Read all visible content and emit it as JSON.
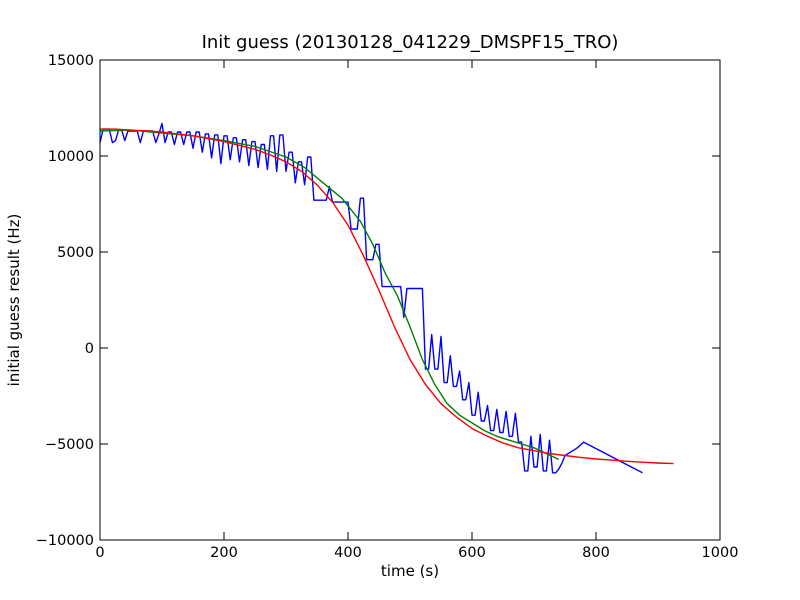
{
  "chart_data": {
    "type": "line",
    "title": "Init guess (20130128_041229_DMSPF15_TRO)",
    "xlabel": "time (s)",
    "ylabel": "initial guess result (Hz)",
    "xlim": [
      0,
      1000
    ],
    "ylim": [
      -10000,
      15000
    ],
    "xticks": [
      "0",
      "200",
      "400",
      "600",
      "800",
      "1000"
    ],
    "yticks": [
      "−10000",
      "−5000",
      "0",
      "5000",
      "10000",
      "15000"
    ],
    "grid": false,
    "legend": "none",
    "series": [
      {
        "color": "#0000ff",
        "x": [
          0,
          5,
          10,
          15,
          20,
          25,
          30,
          35,
          40,
          45,
          50,
          55,
          60,
          65,
          70,
          75,
          80,
          85,
          90,
          95,
          100,
          105,
          110,
          115,
          120,
          125,
          130,
          135,
          140,
          145,
          150,
          155,
          160,
          165,
          170,
          175,
          180,
          185,
          190,
          195,
          200,
          205,
          210,
          215,
          220,
          225,
          230,
          235,
          240,
          245,
          250,
          255,
          260,
          265,
          270,
          275,
          280,
          285,
          290,
          295,
          300,
          305,
          310,
          315,
          320,
          325,
          330,
          335,
          340,
          345,
          350,
          355,
          360,
          365,
          370,
          375,
          380,
          385,
          390,
          395,
          400,
          405,
          410,
          415,
          420,
          425,
          430,
          435,
          440,
          445,
          450,
          455,
          460,
          465,
          470,
          475,
          480,
          485,
          490,
          495,
          500,
          505,
          510,
          515,
          520,
          525,
          530,
          535,
          540,
          545,
          550,
          555,
          560,
          565,
          570,
          575,
          580,
          585,
          590,
          595,
          600,
          605,
          610,
          615,
          620,
          625,
          630,
          635,
          640,
          645,
          650,
          655,
          660,
          665,
          670,
          675,
          680,
          685,
          690,
          695,
          700,
          705,
          710,
          715,
          720,
          725,
          730,
          735,
          740,
          745,
          750,
          760,
          770,
          780,
          875
        ],
        "y": [
          10700,
          11400,
          11400,
          11400,
          10700,
          10800,
          11350,
          11350,
          10800,
          11300,
          11300,
          11300,
          11300,
          10700,
          11300,
          11300,
          11300,
          11300,
          10700,
          11150,
          11700,
          10700,
          11250,
          11250,
          10600,
          11250,
          11250,
          10600,
          11250,
          11250,
          10400,
          11250,
          11250,
          10200,
          11150,
          11150,
          9900,
          11100,
          11100,
          9600,
          11050,
          11050,
          9800,
          10950,
          10950,
          9700,
          10850,
          10850,
          9500,
          10750,
          10750,
          9400,
          10600,
          10600,
          9300,
          11050,
          11050,
          9200,
          11100,
          11100,
          9200,
          10200,
          10200,
          8600,
          9700,
          9700,
          8500,
          9950,
          9950,
          7700,
          7700,
          7700,
          7700,
          7700,
          8400,
          7600,
          7600,
          7600,
          7600,
          7600,
          7600,
          6200,
          6200,
          6200,
          7800,
          7800,
          4600,
          4600,
          4600,
          5400,
          5400,
          3200,
          3200,
          3200,
          3200,
          3200,
          3200,
          3200,
          1600,
          3100,
          3100,
          3100,
          3100,
          3100,
          3100,
          -1100,
          -1100,
          700,
          -1100,
          -1100,
          600,
          -1800,
          -1800,
          -400,
          -2000,
          -2000,
          -1200,
          -2700,
          -2700,
          -1800,
          -3500,
          -3500,
          -2300,
          -3800,
          -3800,
          -3000,
          -4300,
          -4300,
          -3200,
          -4400,
          -4400,
          -3300,
          -4600,
          -4600,
          -3400,
          -4900,
          -4900,
          -6400,
          -6400,
          -4600,
          -6200,
          -6200,
          -4500,
          -6400,
          -6400,
          -4800,
          -6500,
          -6500,
          -6300,
          -6000,
          -5600,
          -5400,
          -5200,
          -4900,
          -6500
        ]
      },
      {
        "color": "#008000",
        "x": [
          0,
          50,
          100,
          150,
          200,
          250,
          300,
          330,
          360,
          390,
          420,
          440,
          460,
          480,
          500,
          520,
          540,
          560,
          580,
          600,
          620,
          640,
          660,
          680,
          700,
          720,
          740
        ],
        "y": [
          11300,
          11350,
          11200,
          11050,
          10800,
          10500,
          9950,
          9400,
          8600,
          7800,
          6600,
          5400,
          3900,
          2700,
          1100,
          -600,
          -1900,
          -2900,
          -3500,
          -3900,
          -4300,
          -4600,
          -4800,
          -5000,
          -5200,
          -5500,
          -5800
        ]
      },
      {
        "color": "#ff0000",
        "x": [
          0,
          25,
          50,
          75,
          100,
          125,
          150,
          175,
          200,
          225,
          250,
          275,
          300,
          325,
          350,
          375,
          400,
          425,
          450,
          475,
          500,
          525,
          550,
          575,
          600,
          625,
          650,
          675,
          700,
          725,
          750,
          775,
          800,
          825,
          850,
          875,
          900,
          925
        ],
        "y": [
          11400,
          11400,
          11350,
          11300,
          11250,
          11150,
          11050,
          10900,
          10750,
          10550,
          10350,
          10050,
          9700,
          9200,
          8500,
          7600,
          6400,
          4800,
          3000,
          1100,
          -600,
          -1900,
          -2900,
          -3600,
          -4200,
          -4600,
          -4950,
          -5200,
          -5350,
          -5500,
          -5600,
          -5700,
          -5780,
          -5840,
          -5900,
          -5950,
          -5990,
          -6020
        ]
      }
    ]
  }
}
